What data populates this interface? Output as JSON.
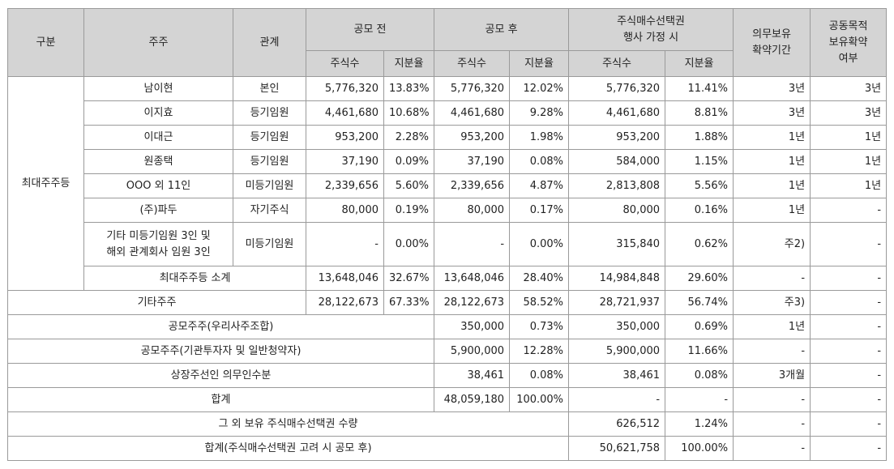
{
  "header": {
    "group": "구분",
    "holder": "주주",
    "relation": "관계",
    "before": "공모 전",
    "after": "공모 후",
    "option_line1": "주식매수선택권",
    "option_line2": "행사 가정 시",
    "shares": "주식수",
    "ratio": "지분율",
    "lockup_line1": "의무보유",
    "lockup_line2": "확약기간",
    "joint_line1": "공동목적",
    "joint_line2": "보유확약",
    "joint_line3": "여부"
  },
  "group_label": "최대주주등",
  "major_rows": [
    {
      "holder": "남이현",
      "relation": "본인",
      "pre_shares": "5,776,320",
      "pre_ratio": "13.83%",
      "post_shares": "5,776,320",
      "post_ratio": "12.02%",
      "opt_shares": "5,776,320",
      "opt_ratio": "11.41%",
      "lockup": "3년",
      "joint": "3년"
    },
    {
      "holder": "이지효",
      "relation": "등기임원",
      "pre_shares": "4,461,680",
      "pre_ratio": "10.68%",
      "post_shares": "4,461,680",
      "post_ratio": "9.28%",
      "opt_shares": "4,461,680",
      "opt_ratio": "8.81%",
      "lockup": "3년",
      "joint": "3년"
    },
    {
      "holder": "이대근",
      "relation": "등기임원",
      "pre_shares": "953,200",
      "pre_ratio": "2.28%",
      "post_shares": "953,200",
      "post_ratio": "1.98%",
      "opt_shares": "953,200",
      "opt_ratio": "1.88%",
      "lockup": "1년",
      "joint": "1년"
    },
    {
      "holder": "원종택",
      "relation": "등기임원",
      "pre_shares": "37,190",
      "pre_ratio": "0.09%",
      "post_shares": "37,190",
      "post_ratio": "0.08%",
      "opt_shares": "584,000",
      "opt_ratio": "1.15%",
      "lockup": "1년",
      "joint": "1년"
    },
    {
      "holder": "OOO 외 11인",
      "relation": "미등기임원",
      "pre_shares": "2,339,656",
      "pre_ratio": "5.60%",
      "post_shares": "2,339,656",
      "post_ratio": "4.87%",
      "opt_shares": "2,813,808",
      "opt_ratio": "5.56%",
      "lockup": "1년",
      "joint": "1년"
    },
    {
      "holder": "(주)파두",
      "relation": "자기주식",
      "pre_shares": "80,000",
      "pre_ratio": "0.19%",
      "post_shares": "80,000",
      "post_ratio": "0.17%",
      "opt_shares": "80,000",
      "opt_ratio": "0.16%",
      "lockup": "1년",
      "joint": "-"
    }
  ],
  "other_exec_row": {
    "holder_line1": "기타 미등기임원 3인 및",
    "holder_line2": "해외 관계회사 임원 3인",
    "relation": "미등기임원",
    "pre_shares": "-",
    "pre_ratio": "0.00%",
    "post_shares": "-",
    "post_ratio": "0.00%",
    "opt_shares": "315,840",
    "opt_ratio": "0.62%",
    "lockup": "주2)",
    "joint": "-"
  },
  "subtotal_row": {
    "label": "최대주주등 소계",
    "pre_shares": "13,648,046",
    "pre_ratio": "32.67%",
    "post_shares": "13,648,046",
    "post_ratio": "28.40%",
    "opt_shares": "14,984,848",
    "opt_ratio": "29.60%",
    "lockup": "-",
    "joint": "-"
  },
  "other_holders_row": {
    "label": "기타주주",
    "pre_shares": "28,122,673",
    "pre_ratio": "67.33%",
    "post_shares": "28,122,673",
    "post_ratio": "58.52%",
    "opt_shares": "28,721,937",
    "opt_ratio": "56.74%",
    "lockup": "주3)",
    "joint": "-"
  },
  "span_rows": [
    {
      "label": "공모주주(우리사주조합)",
      "post_shares": "350,000",
      "post_ratio": "0.73%",
      "opt_shares": "350,000",
      "opt_ratio": "0.69%",
      "lockup": "1년",
      "joint": "-"
    },
    {
      "label": "공모주주(기관투자자 및 일반청약자)",
      "post_shares": "5,900,000",
      "post_ratio": "12.28%",
      "opt_shares": "5,900,000",
      "opt_ratio": "11.66%",
      "lockup": "-",
      "joint": "-"
    },
    {
      "label": "상장주선인 의무인수분",
      "post_shares": "38,461",
      "post_ratio": "0.08%",
      "opt_shares": "38,461",
      "opt_ratio": "0.08%",
      "lockup": "3개월",
      "joint": "-"
    },
    {
      "label": "합계",
      "post_shares": "48,059,180",
      "post_ratio": "100.00%",
      "opt_shares": "-",
      "opt_ratio": "-",
      "lockup": "-",
      "joint": "-"
    }
  ],
  "option_rows": [
    {
      "label": "그 외 보유 주식매수선택권 수량",
      "opt_shares": "626,512",
      "opt_ratio": "1.24%",
      "lockup": "-",
      "joint": "-"
    },
    {
      "label": "합계(주식매수선택권 고려 시 공모 후)",
      "opt_shares": "50,621,758",
      "opt_ratio": "100.00%",
      "lockup": "-",
      "joint": "-"
    }
  ]
}
